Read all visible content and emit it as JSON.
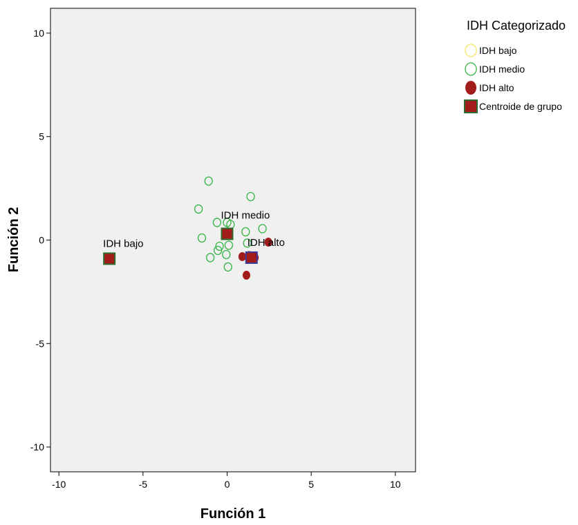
{
  "chart_data": {
    "type": "scatter",
    "xlabel": "Función 1",
    "ylabel": "Función 2",
    "xlim": [
      -10.5,
      11.2
    ],
    "ylim": [
      -11.2,
      11.2
    ],
    "xticks": [
      -10,
      -5,
      0,
      5,
      10
    ],
    "xtick_labels": [
      "-10",
      "-5",
      "0",
      "5",
      "10"
    ],
    "yticks": [
      -10,
      -5,
      0,
      5,
      10
    ],
    "ytick_labels": [
      "-10",
      "-5",
      "0",
      "5",
      "10"
    ],
    "legend": {
      "title": "IDH Categorizado",
      "placement": "top-right outside",
      "entries": [
        {
          "label": "IDH bajo",
          "marker": "open-circle",
          "color": "#f5e663"
        },
        {
          "label": "IDH medio",
          "marker": "open-circle",
          "color": "#33b544"
        },
        {
          "label": "IDH alto",
          "marker": "filled-circle",
          "color": "#a31c1c"
        },
        {
          "label": "Centroide de grupo",
          "marker": "square",
          "color": "#a31c1c"
        }
      ]
    },
    "series": [
      {
        "name": "IDH medio",
        "marker": "open-circle",
        "color": "#33b544",
        "points": [
          [
            -1.1,
            2.85
          ],
          [
            1.4,
            2.1
          ],
          [
            -1.7,
            1.5
          ],
          [
            -0.6,
            0.85
          ],
          [
            0.0,
            0.85
          ],
          [
            0.2,
            0.75
          ],
          [
            2.1,
            0.55
          ],
          [
            1.1,
            0.4
          ],
          [
            -1.5,
            0.1
          ],
          [
            1.2,
            -0.15
          ],
          [
            0.1,
            -0.25
          ],
          [
            -0.45,
            -0.3
          ],
          [
            -0.55,
            -0.5
          ],
          [
            -0.05,
            -0.7
          ],
          [
            -1.0,
            -0.85
          ],
          [
            0.05,
            -1.3
          ]
        ]
      },
      {
        "name": "IDH alto",
        "marker": "filled-circle",
        "color": "#a31c1c",
        "points": [
          [
            2.45,
            -0.1
          ],
          [
            0.9,
            -0.8
          ],
          [
            1.3,
            -0.75
          ],
          [
            1.65,
            -0.85
          ],
          [
            1.15,
            -1.7
          ]
        ]
      },
      {
        "name": "Centroide de grupo",
        "marker": "square",
        "color": "#a31c1c",
        "points": [
          {
            "x": -7.0,
            "y": -0.9,
            "label": "IDH bajo"
          },
          {
            "x": 0.0,
            "y": 0.3,
            "label": "IDH medio"
          },
          {
            "x": 1.45,
            "y": -0.85,
            "label": "IDH alto"
          }
        ]
      }
    ],
    "grid": false,
    "colors": {
      "plot_background": "#f0f0f0",
      "frame": "#000000",
      "centroid_border": "#2e6b2e",
      "alto_centroid_border": "#3a3a9a"
    }
  }
}
